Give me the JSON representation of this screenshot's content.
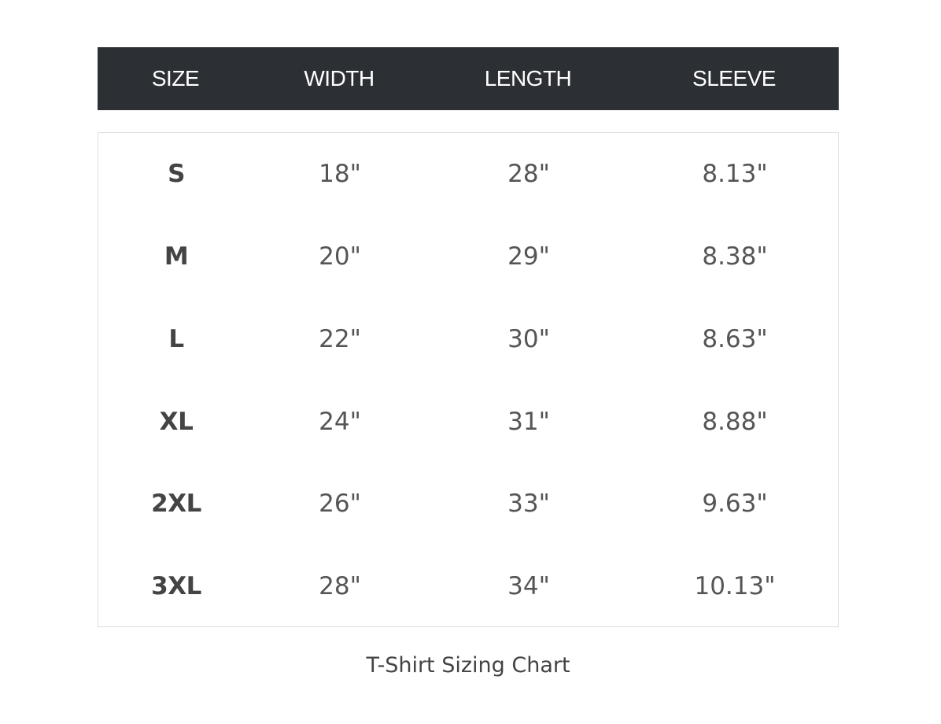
{
  "table": {
    "headers": [
      "SIZE",
      "WIDTH",
      "LENGTH",
      "SLEEVE"
    ],
    "rows": [
      {
        "size": "S",
        "width": "18\"",
        "length": "28\"",
        "sleeve": "8.13\""
      },
      {
        "size": "M",
        "width": "20\"",
        "length": "29\"",
        "sleeve": "8.38\""
      },
      {
        "size": "L",
        "width": "22\"",
        "length": "30\"",
        "sleeve": "8.63\""
      },
      {
        "size": "XL",
        "width": "24\"",
        "length": "31\"",
        "sleeve": "8.88\""
      },
      {
        "size": "2XL",
        "width": "26\"",
        "length": "33\"",
        "sleeve": "9.63\""
      },
      {
        "size": "3XL",
        "width": "28\"",
        "length": "34\"",
        "sleeve": "10.13\""
      }
    ]
  },
  "caption": "T-Shirt Sizing Chart",
  "colors": {
    "header_background": "#2c3034",
    "header_text": "#ffffff",
    "body_text": "#555555",
    "border": "#dddddd"
  }
}
